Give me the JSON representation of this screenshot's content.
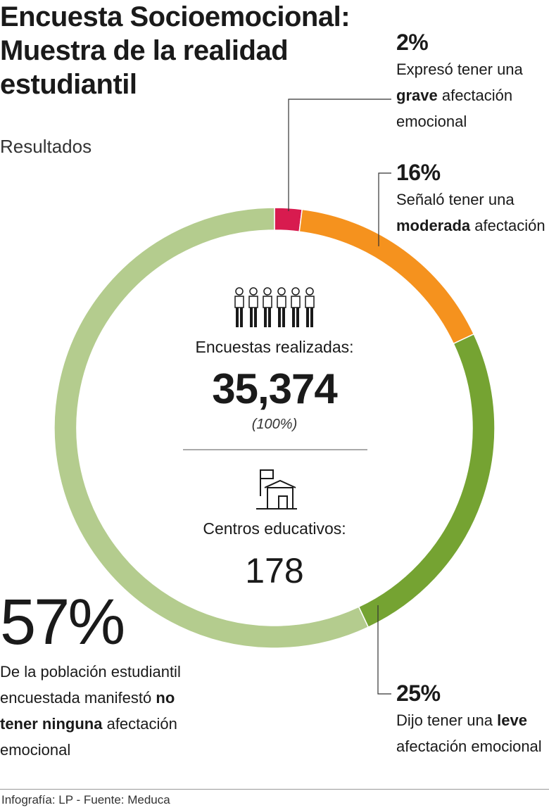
{
  "header": {
    "title": "Encuesta Socioemocional: Muestra de la realidad estudiantil",
    "subtitle": "Resultados"
  },
  "center": {
    "encuestas_label": "Encuestas realizadas:",
    "encuestas_value": "35,374",
    "encuestas_pct": "(100%)",
    "centros_label": "Centros educativos:",
    "centros_value": "178"
  },
  "annotations": {
    "grave": {
      "pct": "2%",
      "pre": "Expresó tener una",
      "bold": "grave",
      "post": "afectación emocional"
    },
    "moderada": {
      "pct": "16%",
      "pre": "Señaló tener una",
      "bold": "moderada",
      "post": "afectación"
    },
    "leve": {
      "pct": "25%",
      "pre": "Dijo tener una",
      "bold": "leve",
      "post": "afectación emocional"
    },
    "ninguna": {
      "pct": "57%",
      "pre": "De la población estudiantil encuestada manifestó",
      "bold": "no tener ninguna",
      "post": "afectación emocional"
    }
  },
  "footer": {
    "credit": "Infografía: LP - Fuente: Meduca"
  },
  "chart_data": {
    "type": "pie",
    "categories": [
      "Grave",
      "Moderada",
      "Leve",
      "Ninguna"
    ],
    "values": [
      2,
      16,
      25,
      57
    ],
    "colors": [
      "#d81b4f",
      "#f5921e",
      "#75a332",
      "#b4cc8e"
    ],
    "donut": true,
    "total_surveys": 35374,
    "educational_centers": 178
  }
}
